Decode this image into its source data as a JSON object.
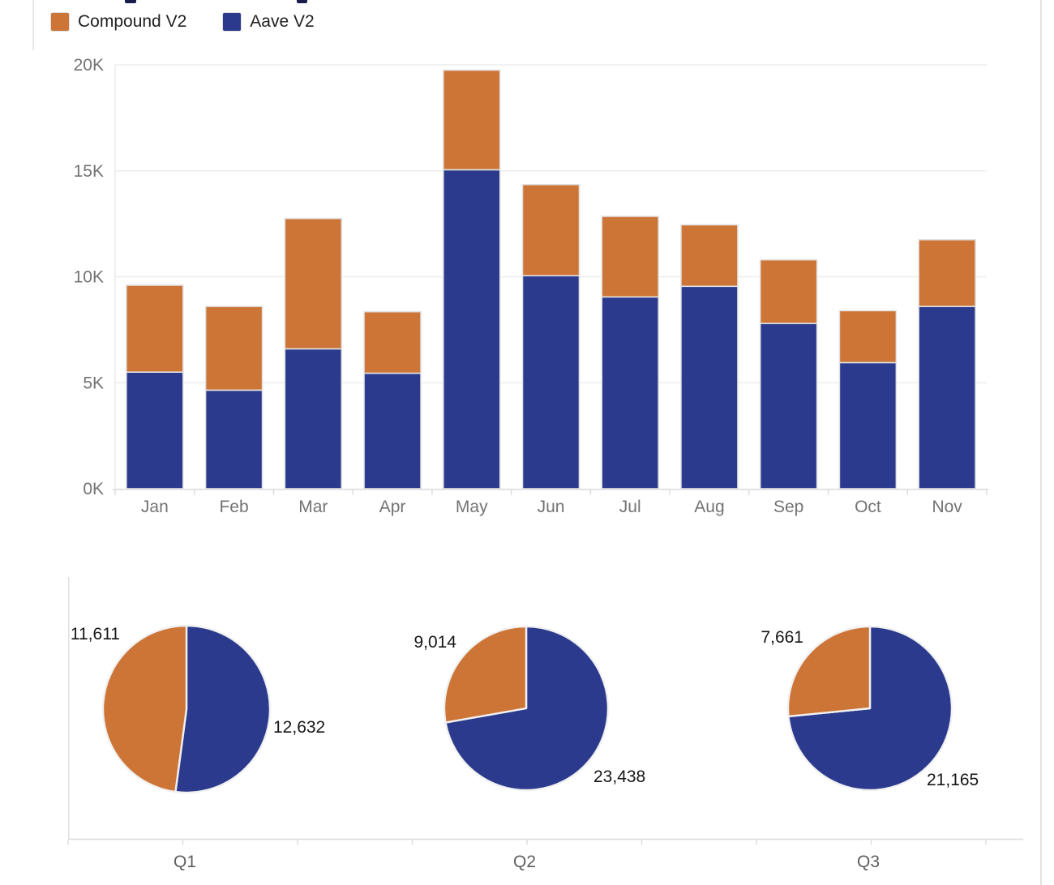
{
  "page": {
    "background": "#ffffff",
    "border_color": "#e3e3e3",
    "clipped_title_color": "#1b1b4d"
  },
  "legend": {
    "items": [
      {
        "label": "Compound V2",
        "color": "#cd7437"
      },
      {
        "label": "Aave V2",
        "color": "#2b3a8d"
      }
    ]
  },
  "chart_data": [
    {
      "type": "bar",
      "stacked": true,
      "title": "",
      "categories": [
        "Jan",
        "Feb",
        "Mar",
        "Apr",
        "May",
        "Jun",
        "Jul",
        "Aug",
        "Sep",
        "Oct",
        "Nov"
      ],
      "series": [
        {
          "name": "Aave V2",
          "color": "#2b3a8d",
          "values": [
            5500,
            4650,
            6600,
            5450,
            15050,
            10050,
            9050,
            9550,
            7800,
            5950,
            8600
          ]
        },
        {
          "name": "Compound V2",
          "color": "#cd7437",
          "values": [
            4100,
            3950,
            6150,
            2900,
            4700,
            4300,
            3800,
            2900,
            3000,
            2450,
            3150
          ]
        }
      ],
      "ylim": [
        0,
        20000
      ],
      "y_ticks": [
        {
          "value": 0,
          "label": "0K"
        },
        {
          "value": 5000,
          "label": "5K"
        },
        {
          "value": 10000,
          "label": "10K"
        },
        {
          "value": 15000,
          "label": "15K"
        },
        {
          "value": 20000,
          "label": "20K"
        }
      ],
      "grid": true,
      "legend_position": "top-left"
    },
    {
      "type": "pie",
      "categories": [
        "Q1",
        "Q2",
        "Q3"
      ],
      "series": [
        {
          "name": "Aave V2",
          "color": "#2b3a8d",
          "values": [
            12632,
            23438,
            21165
          ],
          "labels": [
            "12,632",
            "23,438",
            "21,165"
          ]
        },
        {
          "name": "Compound V2",
          "color": "#cd7437",
          "values": [
            11611,
            9014,
            7661
          ],
          "labels": [
            "11,611",
            "9,014",
            "7,661"
          ]
        }
      ],
      "slice_start": "top, Aave V2 clockwise first, Compound V2 fills upper-left remainder"
    }
  ]
}
